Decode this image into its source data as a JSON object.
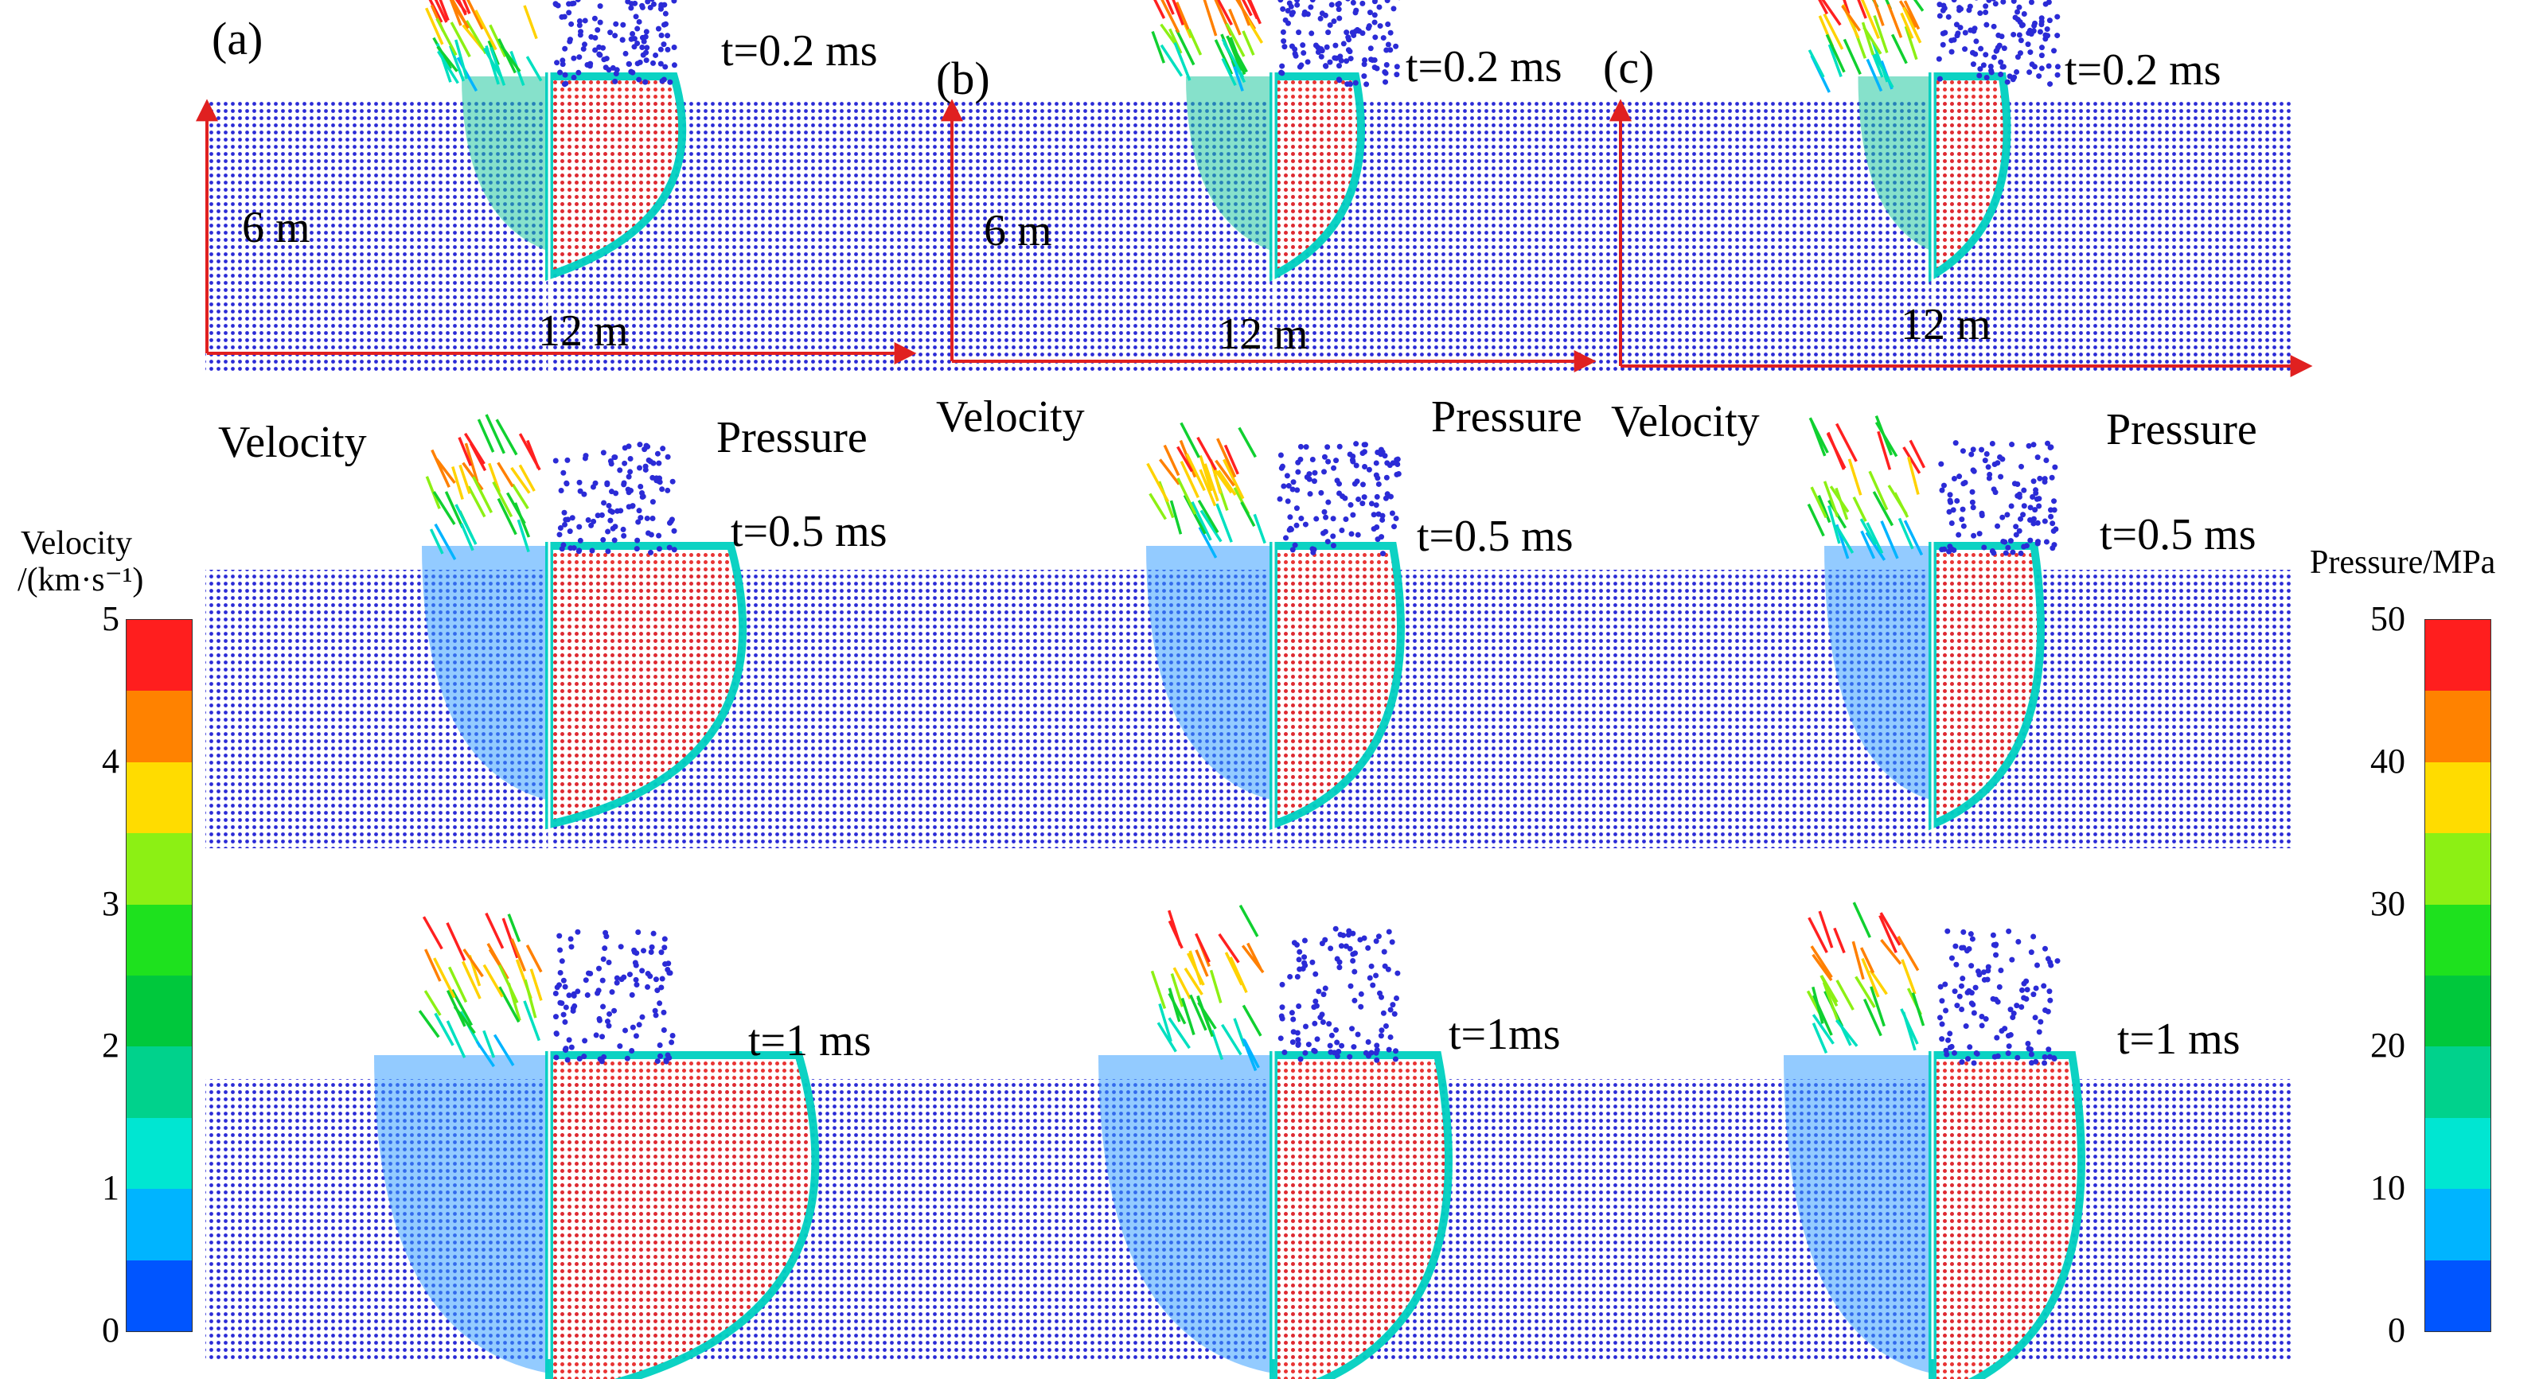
{
  "figure": {
    "columns": [
      {
        "id": "a",
        "panel_label": "(a)",
        "width_label": "12 m",
        "depth_label": "6 m",
        "velocity_label": "Velocity",
        "pressure_label": "Pressure",
        "times": [
          "t=0.2 ms",
          "t=0.5 ms",
          "t=1 ms"
        ]
      },
      {
        "id": "b",
        "panel_label": "(b)",
        "width_label": "12 m",
        "depth_label": "6 m",
        "velocity_label": "Velocity",
        "pressure_label": "Pressure",
        "times": [
          "t=0.2 ms",
          "t=0.5 ms",
          "t=1ms"
        ]
      },
      {
        "id": "c",
        "panel_label": "(c)",
        "width_label": "12 m",
        "velocity_label": "Velocity",
        "pressure_label": "Pressure",
        "times": [
          "t=0.2 ms",
          "t=0.5 ms",
          "t=1 ms"
        ]
      }
    ],
    "velocity_colorbar": {
      "title_line1": "Velocity",
      "title_line2": "/(km·s⁻¹)",
      "ticks": [
        "0",
        "1",
        "2",
        "3",
        "4",
        "5"
      ],
      "min": 0,
      "max": 5
    },
    "pressure_colorbar": {
      "title": "Pressure/MPa",
      "ticks": [
        "0",
        "10",
        "20",
        "30",
        "40",
        "50"
      ],
      "min": 0,
      "max": 50
    },
    "colors": {
      "particle_blue": "#2b2bd6",
      "arrow_red": "#e03030",
      "scale": [
        "#0000e0",
        "#0055ff",
        "#00b4ff",
        "#00e6d2",
        "#00d28c",
        "#00c83c",
        "#1ee11e",
        "#8cf014",
        "#ffdc00",
        "#ff8200",
        "#ff1e1e"
      ]
    }
  }
}
